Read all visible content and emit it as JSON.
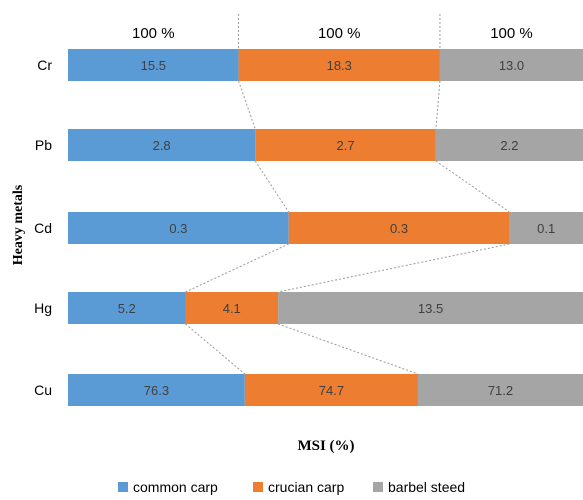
{
  "chart_data": {
    "type": "bar",
    "stacked": true,
    "normalized_percent": true,
    "orientation": "horizontal",
    "title": "",
    "xlabel": "MSI (%)",
    "ylabel": "Heavy metals",
    "categories": [
      "Cr",
      "Pb",
      "Cd",
      "Hg",
      "Cu"
    ],
    "total_labels": [
      "100 %",
      "100 %",
      "100 %"
    ],
    "series": [
      {
        "name": "common carp",
        "color": "#5B9BD5",
        "values": [
          15.5,
          2.8,
          0.3,
          5.2,
          76.3
        ]
      },
      {
        "name": "crucian carp",
        "color": "#ED7D31",
        "values": [
          18.3,
          2.7,
          0.3,
          4.1,
          74.7
        ]
      },
      {
        "name": "barbel steed",
        "color": "#A5A5A5",
        "values": [
          13.0,
          2.2,
          0.1,
          13.5,
          71.2
        ]
      }
    ],
    "grid": false,
    "legend_position": "bottom",
    "series_lines": true
  }
}
